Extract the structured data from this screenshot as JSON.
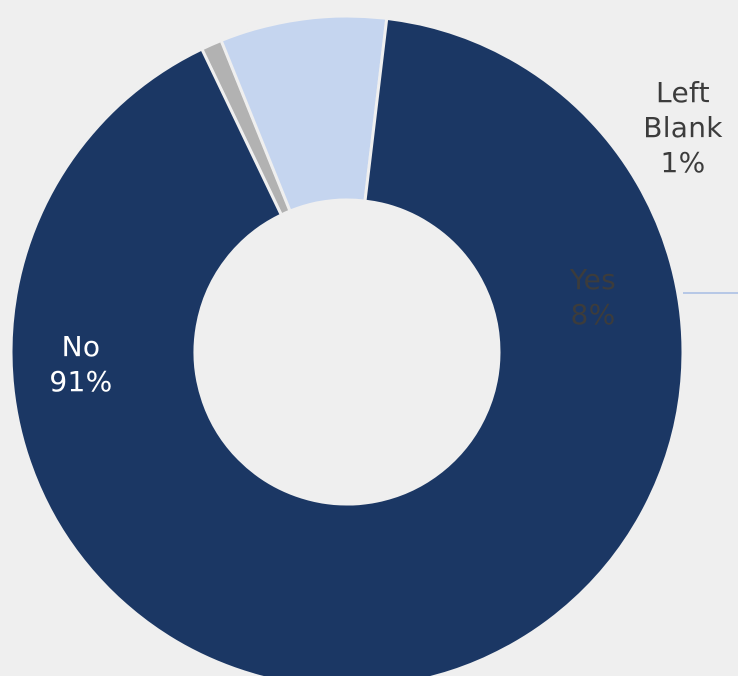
{
  "chart_data": {
    "type": "pie",
    "title": "",
    "slices": [
      {
        "label": "Left Blank",
        "label_lines": [
          "Left",
          "Blank"
        ],
        "percent_text": "1%",
        "value": 1,
        "color": "#b2b2b2",
        "label_color": "#3c3c3c"
      },
      {
        "label": "Yes",
        "label_lines": [
          "Yes"
        ],
        "percent_text": "8%",
        "value": 8,
        "color": "#c5d5ef",
        "label_color": "#3c3c3c"
      },
      {
        "label": "No",
        "label_lines": [
          "No"
        ],
        "percent_text": "91%",
        "value": 91,
        "color": "#1b3764",
        "label_color": "#ffffff"
      }
    ],
    "donut": true,
    "legend": "none",
    "background_color": "#efefef"
  }
}
